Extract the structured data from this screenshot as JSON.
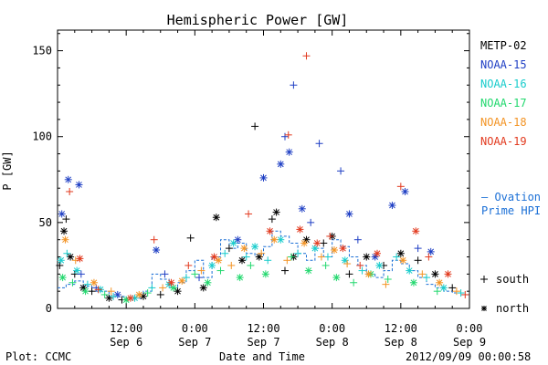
{
  "chart_data": {
    "type": "scatter",
    "title": "Hemispheric Power [GW]",
    "ylabel": "P [GW]",
    "xlabel": "Date and Time",
    "ylim": [
      0,
      162
    ],
    "xlim_hours": [
      0,
      96
    ],
    "y_ticks": [
      0,
      50,
      100,
      150
    ],
    "x_ticks": [
      {
        "time": "12:00",
        "date": "Sep 6"
      },
      {
        "time": "0:00",
        "date": "Sep 7"
      },
      {
        "time": "12:00",
        "date": "Sep 7"
      },
      {
        "time": "0:00",
        "date": "Sep 8"
      },
      {
        "time": "12:00",
        "date": "Sep 8"
      },
      {
        "time": "0:00",
        "date": "Sep 9"
      }
    ],
    "marker_legend": {
      "south": "south",
      "north": "north"
    },
    "ovation_label": [
      "— Ovation",
      "Prime HPI"
    ],
    "ovation_color": "#1a6fd6",
    "series": [
      {
        "name": "METP-02",
        "color": "#000000",
        "points": [
          [
            0.5,
            25,
            "s"
          ],
          [
            1.5,
            45,
            "n"
          ],
          [
            2.0,
            52,
            "s"
          ],
          [
            3.0,
            30,
            "n"
          ],
          [
            4.0,
            20,
            "s"
          ],
          [
            6.0,
            12,
            "n"
          ],
          [
            8.0,
            10,
            "s"
          ],
          [
            12.0,
            6,
            "n"
          ],
          [
            15.0,
            5,
            "s"
          ],
          [
            20.0,
            7,
            "n"
          ],
          [
            24.0,
            8,
            "s"
          ],
          [
            28.0,
            10,
            "n"
          ],
          [
            31.0,
            41,
            "s"
          ],
          [
            34.0,
            12,
            "n"
          ],
          [
            37.0,
            53,
            "n"
          ],
          [
            40.0,
            35,
            "s"
          ],
          [
            43.0,
            28,
            "n"
          ],
          [
            46.0,
            106,
            "s"
          ],
          [
            47.0,
            30,
            "n"
          ],
          [
            50.0,
            52,
            "s"
          ],
          [
            51.0,
            56,
            "n"
          ],
          [
            53.0,
            22,
            "s"
          ],
          [
            55.0,
            30,
            "n"
          ],
          [
            58.0,
            40,
            "n"
          ],
          [
            62.0,
            38,
            "s"
          ],
          [
            64.0,
            42,
            "n"
          ],
          [
            68.0,
            20,
            "s"
          ],
          [
            72.0,
            30,
            "n"
          ],
          [
            76.0,
            25,
            "s"
          ],
          [
            80.0,
            32,
            "n"
          ],
          [
            84.0,
            28,
            "s"
          ],
          [
            88.0,
            20,
            "n"
          ],
          [
            92.0,
            12,
            "s"
          ]
        ]
      },
      {
        "name": "NOAA-15",
        "color": "#1f3fc4",
        "points": [
          [
            1.0,
            55,
            "n"
          ],
          [
            2.5,
            75,
            "n"
          ],
          [
            5.0,
            72,
            "n"
          ],
          [
            5.5,
            20,
            "s"
          ],
          [
            9.0,
            12,
            "s"
          ],
          [
            14.0,
            8,
            "n"
          ],
          [
            23.0,
            34,
            "n"
          ],
          [
            25.0,
            20,
            "s"
          ],
          [
            33.0,
            18,
            "s"
          ],
          [
            42.0,
            40,
            "n"
          ],
          [
            48.0,
            76,
            "n"
          ],
          [
            52.0,
            84,
            "n"
          ],
          [
            53.0,
            100,
            "s"
          ],
          [
            54.0,
            91,
            "n"
          ],
          [
            55.0,
            130,
            "s"
          ],
          [
            57.0,
            58,
            "n"
          ],
          [
            59.0,
            50,
            "s"
          ],
          [
            61.0,
            96,
            "s"
          ],
          [
            66.0,
            80,
            "s"
          ],
          [
            68.0,
            55,
            "n"
          ],
          [
            70.0,
            40,
            "s"
          ],
          [
            74.0,
            30,
            "n"
          ],
          [
            78.0,
            60,
            "n"
          ],
          [
            81.0,
            68,
            "n"
          ],
          [
            84.0,
            35,
            "s"
          ],
          [
            87.0,
            33,
            "n"
          ]
        ]
      },
      {
        "name": "NOAA-16",
        "color": "#18cccc",
        "points": [
          [
            0.8,
            28,
            "n"
          ],
          [
            2.2,
            32,
            "s"
          ],
          [
            4.5,
            22,
            "n"
          ],
          [
            7.0,
            14,
            "s"
          ],
          [
            10.0,
            11,
            "n"
          ],
          [
            13.0,
            7,
            "s"
          ],
          [
            18.0,
            6,
            "n"
          ],
          [
            22.0,
            12,
            "s"
          ],
          [
            26.0,
            14,
            "n"
          ],
          [
            30.0,
            18,
            "s"
          ],
          [
            36.0,
            25,
            "n"
          ],
          [
            39.0,
            32,
            "s"
          ],
          [
            41.0,
            38,
            "n"
          ],
          [
            44.0,
            30,
            "s"
          ],
          [
            46.0,
            36,
            "n"
          ],
          [
            49.0,
            28,
            "s"
          ],
          [
            52.0,
            40,
            "n"
          ],
          [
            56.0,
            32,
            "s"
          ],
          [
            60.0,
            35,
            "n"
          ],
          [
            63.0,
            30,
            "s"
          ],
          [
            67.0,
            28,
            "n"
          ],
          [
            71.0,
            22,
            "s"
          ],
          [
            75.0,
            25,
            "n"
          ],
          [
            79.0,
            30,
            "s"
          ],
          [
            82.0,
            22,
            "n"
          ],
          [
            86.0,
            18,
            "s"
          ],
          [
            90.0,
            12,
            "n"
          ],
          [
            94.0,
            9,
            "s"
          ]
        ]
      },
      {
        "name": "NOAA-17",
        "color": "#22d86e",
        "points": [
          [
            1.2,
            18,
            "n"
          ],
          [
            3.5,
            15,
            "s"
          ],
          [
            6.5,
            10,
            "n"
          ],
          [
            11.0,
            8,
            "s"
          ],
          [
            16.0,
            5,
            "n"
          ],
          [
            21.0,
            9,
            "s"
          ],
          [
            27.0,
            12,
            "n"
          ],
          [
            32.0,
            20,
            "s"
          ],
          [
            35.0,
            15,
            "n"
          ],
          [
            38.0,
            22,
            "s"
          ],
          [
            42.5,
            18,
            "n"
          ],
          [
            45.0,
            25,
            "s"
          ],
          [
            48.5,
            20,
            "n"
          ],
          [
            54.5,
            30,
            "s"
          ],
          [
            58.5,
            22,
            "n"
          ],
          [
            62.5,
            25,
            "s"
          ],
          [
            65.0,
            18,
            "n"
          ],
          [
            69.0,
            15,
            "s"
          ],
          [
            73.0,
            20,
            "n"
          ],
          [
            77.0,
            17,
            "s"
          ],
          [
            83.0,
            15,
            "n"
          ],
          [
            88.5,
            10,
            "s"
          ]
        ]
      },
      {
        "name": "NOAA-18",
        "color": "#f39425",
        "points": [
          [
            1.8,
            40,
            "n"
          ],
          [
            4.2,
            28,
            "s"
          ],
          [
            8.5,
            15,
            "n"
          ],
          [
            12.5,
            10,
            "s"
          ],
          [
            19.0,
            8,
            "n"
          ],
          [
            24.5,
            12,
            "s"
          ],
          [
            29.0,
            16,
            "n"
          ],
          [
            33.5,
            22,
            "s"
          ],
          [
            37.5,
            28,
            "n"
          ],
          [
            40.5,
            25,
            "s"
          ],
          [
            43.5,
            35,
            "n"
          ],
          [
            47.5,
            32,
            "s"
          ],
          [
            50.5,
            40,
            "n"
          ],
          [
            53.5,
            28,
            "s"
          ],
          [
            57.5,
            38,
            "n"
          ],
          [
            61.5,
            30,
            "s"
          ],
          [
            64.5,
            34,
            "n"
          ],
          [
            67.5,
            26,
            "s"
          ],
          [
            72.5,
            20,
            "n"
          ],
          [
            76.5,
            14,
            "s"
          ],
          [
            80.5,
            28,
            "n"
          ],
          [
            85.0,
            20,
            "s"
          ],
          [
            89.0,
            15,
            "n"
          ],
          [
            93.0,
            10,
            "s"
          ]
        ]
      },
      {
        "name": "NOAA-19",
        "color": "#e23a1f",
        "points": [
          [
            2.8,
            68,
            "s"
          ],
          [
            5.2,
            29,
            "n"
          ],
          [
            9.5,
            11,
            "s"
          ],
          [
            17.0,
            6,
            "n"
          ],
          [
            22.5,
            40,
            "s"
          ],
          [
            26.5,
            15,
            "n"
          ],
          [
            30.5,
            25,
            "s"
          ],
          [
            36.5,
            30,
            "n"
          ],
          [
            44.5,
            55,
            "s"
          ],
          [
            49.5,
            45,
            "n"
          ],
          [
            53.8,
            101,
            "s"
          ],
          [
            56.5,
            46,
            "n"
          ],
          [
            58.0,
            147,
            "s"
          ],
          [
            60.5,
            38,
            "n"
          ],
          [
            63.5,
            42,
            "s"
          ],
          [
            66.5,
            35,
            "n"
          ],
          [
            70.5,
            25,
            "s"
          ],
          [
            74.5,
            32,
            "n"
          ],
          [
            80.0,
            71,
            "s"
          ],
          [
            83.5,
            45,
            "n"
          ],
          [
            86.5,
            30,
            "s"
          ],
          [
            91.0,
            20,
            "n"
          ],
          [
            95.0,
            8,
            "s"
          ]
        ]
      }
    ],
    "ovation_hpi": [
      [
        0,
        12
      ],
      [
        2,
        14
      ],
      [
        4,
        16
      ],
      [
        6,
        13
      ],
      [
        8,
        10
      ],
      [
        12,
        7
      ],
      [
        16,
        6
      ],
      [
        20,
        10
      ],
      [
        22,
        20
      ],
      [
        24,
        17
      ],
      [
        26,
        12
      ],
      [
        28,
        15
      ],
      [
        30,
        22
      ],
      [
        32,
        28
      ],
      [
        34,
        18
      ],
      [
        36,
        30
      ],
      [
        38,
        40
      ],
      [
        40,
        35
      ],
      [
        42,
        38
      ],
      [
        44,
        32
      ],
      [
        46,
        30
      ],
      [
        48,
        36
      ],
      [
        50,
        45
      ],
      [
        52,
        42
      ],
      [
        54,
        38
      ],
      [
        56,
        32
      ],
      [
        58,
        28
      ],
      [
        60,
        35
      ],
      [
        62,
        30
      ],
      [
        64,
        40
      ],
      [
        66,
        36
      ],
      [
        68,
        30
      ],
      [
        70,
        25
      ],
      [
        72,
        20
      ],
      [
        74,
        18
      ],
      [
        76,
        22
      ],
      [
        78,
        28
      ],
      [
        80,
        26
      ],
      [
        82,
        22
      ],
      [
        84,
        18
      ],
      [
        86,
        14
      ],
      [
        88,
        12
      ],
      [
        90,
        10
      ],
      [
        92,
        9
      ],
      [
        94,
        8
      ],
      [
        96,
        8
      ]
    ]
  },
  "footer": {
    "left": "Plot: CCMC",
    "center": "Date and Time",
    "right": "2012/09/09 00:00:58"
  }
}
